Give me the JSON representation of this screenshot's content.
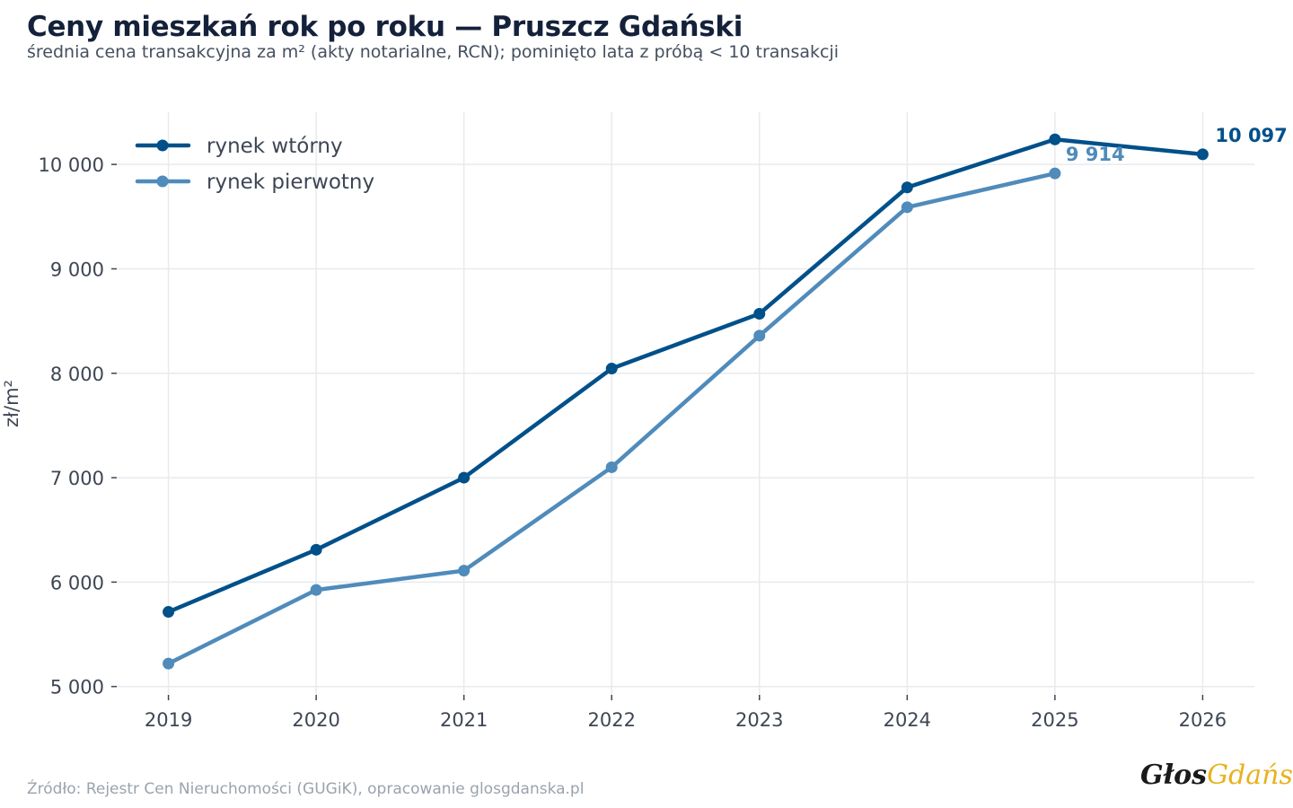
{
  "header": {
    "title": "Ceny mieszkań rok po roku — Pruszcz Gdański",
    "subtitle": "średnia cena transakcyjna za m² (akty notarialne, RCN); pominięto lata z próbą < 10 transakcji"
  },
  "footer": {
    "source": "Źródło: Rejestr Cen Nieruchomości (GUGiK), opracowanie glosgdanska.pl",
    "logo_part1": "Głos",
    "logo_part2": "Gdańska"
  },
  "colors": {
    "secondary_market": "#00508a",
    "primary_market": "#4f8bbb",
    "grid": "#e8eaed",
    "axis_text": "#3e4654"
  },
  "chart_data": {
    "type": "line",
    "title": "Ceny mieszkań rok po roku — Pruszcz Gdański",
    "subtitle": "średnia cena transakcyjna za m² (akty notarialne, RCN); pominięto lata z próbą < 10 transakcji",
    "xlabel": "",
    "ylabel": "zł/m²",
    "x": [
      2019,
      2020,
      2021,
      2022,
      2023,
      2024,
      2025,
      2026
    ],
    "xlim": [
      2018.65,
      2026.35
    ],
    "ylim": [
      4920,
      10500
    ],
    "yticks": [
      5000,
      6000,
      7000,
      8000,
      9000,
      10000
    ],
    "ytick_labels": [
      "5 000",
      "6 000",
      "7 000",
      "8 000",
      "9 000",
      "10 000"
    ],
    "xtick_labels": [
      "2019",
      "2020",
      "2021",
      "2022",
      "2023",
      "2024",
      "2025",
      "2026"
    ],
    "grid": true,
    "legend_position": "top-left",
    "series": [
      {
        "name": "rynek wtórny",
        "color": "#00508a",
        "x": [
          2019,
          2020,
          2021,
          2022,
          2023,
          2024,
          2025,
          2026
        ],
        "values": [
          5715,
          6310,
          7000,
          8045,
          8570,
          9780,
          10240,
          10097
        ],
        "end_label": "10 097"
      },
      {
        "name": "rynek pierwotny",
        "color": "#4f8bbb",
        "x": [
          2019,
          2020,
          2021,
          2022,
          2023,
          2024,
          2025
        ],
        "values": [
          5220,
          5925,
          6110,
          7100,
          8360,
          9590,
          9914
        ],
        "end_label": "9 914"
      }
    ]
  }
}
